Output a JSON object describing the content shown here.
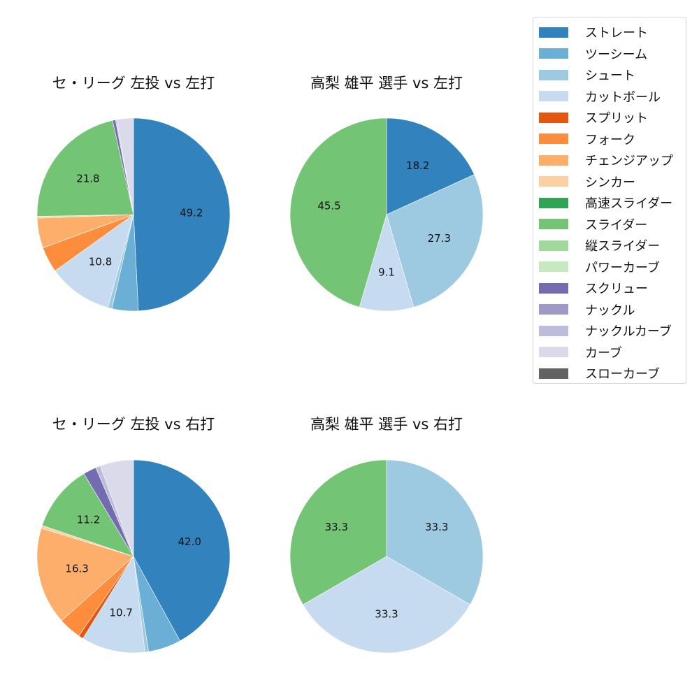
{
  "chart_data": [
    {
      "type": "pie",
      "title": "セ・リーグ 左投 vs 左打",
      "categories": [
        "ストレート",
        "ツーシーム",
        "シュート",
        "カットボール",
        "フォーク",
        "チェンジアップ",
        "シンカー",
        "スライダー",
        "スクリュー",
        "ナックルカーブ",
        "カーブ"
      ],
      "values": [
        49.2,
        4.4,
        0.7,
        10.8,
        4.3,
        5.0,
        0.3,
        21.8,
        0.5,
        0.2,
        2.8
      ],
      "labels_shown": [
        "49.2",
        "",
        "",
        "10.8",
        "",
        "",
        "",
        "21.8",
        "",
        "",
        ""
      ]
    },
    {
      "type": "pie",
      "title": "高梨 雄平 選手 vs 左打",
      "categories": [
        "ストレート",
        "シュート",
        "カットボール",
        "スライダー"
      ],
      "values": [
        18.2,
        27.3,
        9.1,
        45.5
      ],
      "labels_shown": [
        "18.2",
        "27.3",
        "9.1",
        "45.5"
      ]
    },
    {
      "type": "pie",
      "title": "セ・リーグ 左投 vs 右打",
      "categories": [
        "ストレート",
        "ツーシーム",
        "シュート",
        "カットボール",
        "スプリット",
        "フォーク",
        "チェンジアップ",
        "シンカー",
        "スライダー",
        "スクリュー",
        "ナックルカーブ",
        "カーブ"
      ],
      "values": [
        42.0,
        5.5,
        0.6,
        10.7,
        0.8,
        3.8,
        16.3,
        0.5,
        11.2,
        2.2,
        0.8,
        5.6
      ],
      "labels_shown": [
        "42.0",
        "",
        "",
        "10.7",
        "",
        "",
        "16.3",
        "",
        "11.2",
        "",
        "",
        ""
      ]
    },
    {
      "type": "pie",
      "title": "高梨 雄平 選手 vs 右打",
      "categories": [
        "シュート",
        "カットボール",
        "スライダー"
      ],
      "values": [
        33.3,
        33.3,
        33.3
      ],
      "labels_shown": [
        "33.3",
        "33.3",
        "33.3"
      ]
    }
  ],
  "colors": {
    "ストレート": "#3182bd",
    "ツーシーム": "#6baed6",
    "シュート": "#9ecae1",
    "カットボール": "#c6dbef",
    "スプリット": "#e6550d",
    "フォーク": "#fd8d3c",
    "チェンジアップ": "#fdae6b",
    "シンカー": "#fdd0a2",
    "高速スライダー": "#31a354",
    "スライダー": "#74c476",
    "縦スライダー": "#a1d99b",
    "パワーカーブ": "#c7e9c0",
    "スクリュー": "#756bb1",
    "ナックル": "#9e9ac8",
    "ナックルカーブ": "#bcbddc",
    "カーブ": "#dadaeb",
    "スローカーブ": "#636363"
  },
  "legend": {
    "items": [
      "ストレート",
      "ツーシーム",
      "シュート",
      "カットボール",
      "スプリット",
      "フォーク",
      "チェンジアップ",
      "シンカー",
      "高速スライダー",
      "スライダー",
      "縦スライダー",
      "パワーカーブ",
      "スクリュー",
      "ナックル",
      "ナックルカーブ",
      "カーブ",
      "スローカーブ"
    ]
  }
}
